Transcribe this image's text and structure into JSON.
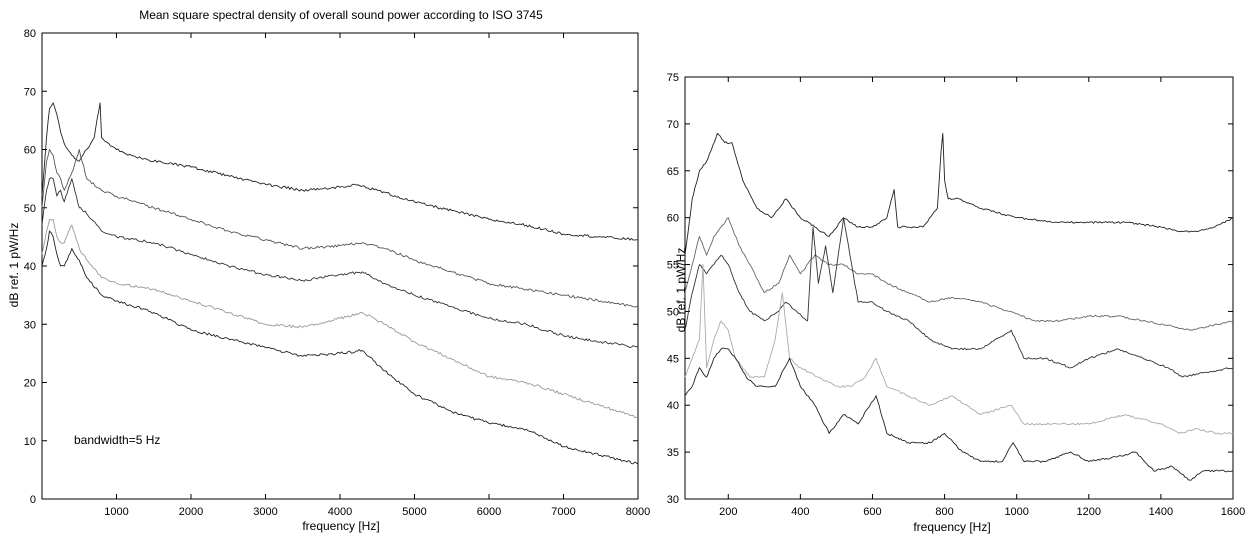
{
  "chart_data": [
    {
      "type": "line",
      "title": "Mean square spectral density of overall sound power according to ISO 3745",
      "xlabel": "frequency [Hz]",
      "ylabel": "dB ref. 1 pW/Hz",
      "annotation": "bandwidth=5 Hz",
      "xlim": [
        0,
        8000
      ],
      "ylim": [
        0,
        80
      ],
      "xticks": [
        1000,
        2000,
        3000,
        4000,
        5000,
        6000,
        7000,
        8000
      ],
      "yticks": [
        0,
        10,
        20,
        30,
        40,
        50,
        60,
        70,
        80
      ],
      "grid": false,
      "series": [
        {
          "color": "#222222",
          "x": [
            0,
            60,
            100,
            150,
            200,
            250,
            300,
            400,
            500,
            600,
            700,
            780,
            800,
            900,
            1000,
            1200,
            1500,
            2000,
            2500,
            3000,
            3500,
            4000,
            4200,
            4500,
            5000,
            5500,
            6000,
            6500,
            7000,
            7500,
            8000
          ],
          "y": [
            52,
            62,
            67,
            68,
            66,
            63,
            61,
            59,
            58,
            60,
            62,
            68,
            62,
            61,
            60,
            59,
            58,
            57,
            55.5,
            54,
            53,
            53.5,
            54,
            53,
            51,
            49.5,
            48,
            47,
            45.5,
            45,
            44.5
          ]
        },
        {
          "color": "#555555",
          "x": [
            0,
            60,
            100,
            150,
            200,
            250,
            300,
            400,
            500,
            600,
            800,
            1000,
            1500,
            2000,
            2500,
            3000,
            3500,
            4000,
            4300,
            4600,
            5000,
            5500,
            6000,
            6500,
            7000,
            7500,
            8000
          ],
          "y": [
            50,
            58,
            60,
            59,
            56,
            55,
            53,
            56,
            60,
            55,
            53,
            52,
            50,
            48,
            46,
            44.5,
            43,
            43.5,
            44,
            43,
            41,
            39,
            37,
            36,
            35,
            34,
            33
          ]
        },
        {
          "color": "#333333",
          "x": [
            0,
            60,
            100,
            150,
            200,
            250,
            300,
            400,
            500,
            600,
            800,
            1000,
            1500,
            2000,
            2500,
            3000,
            3500,
            4000,
            4300,
            4600,
            5000,
            5500,
            6000,
            6500,
            7000,
            7500,
            8000
          ],
          "y": [
            47,
            53,
            55,
            55,
            52,
            53,
            51,
            55,
            50,
            49,
            46,
            45,
            44,
            42,
            40,
            38.5,
            37.5,
            38.5,
            39,
            37,
            35,
            33,
            31,
            30,
            28,
            27,
            26
          ]
        },
        {
          "color": "#999999",
          "x": [
            0,
            60,
            100,
            150,
            200,
            250,
            300,
            400,
            500,
            600,
            800,
            1000,
            1500,
            2000,
            2500,
            3000,
            3500,
            4000,
            4300,
            4600,
            5000,
            5500,
            6000,
            6500,
            7000,
            7500,
            8000
          ],
          "y": [
            42,
            46,
            48,
            48,
            45,
            44,
            44,
            47,
            43,
            41,
            38,
            37,
            36,
            34,
            32,
            30,
            29.5,
            31,
            32,
            30,
            27,
            24,
            21,
            20,
            18,
            16,
            14
          ]
        },
        {
          "color": "#222222",
          "x": [
            0,
            60,
            100,
            150,
            200,
            250,
            300,
            400,
            500,
            600,
            800,
            1000,
            1500,
            2000,
            2500,
            3000,
            3500,
            4000,
            4300,
            4600,
            5000,
            5500,
            6000,
            6500,
            7000,
            7500,
            8000
          ],
          "y": [
            40,
            43,
            46,
            45,
            42,
            40,
            40,
            43,
            41,
            38,
            35,
            34,
            32,
            29,
            27.5,
            26,
            24.5,
            25,
            25.5,
            22,
            18,
            15,
            13,
            12,
            9,
            7.5,
            6
          ]
        }
      ]
    },
    {
      "type": "line",
      "title": "",
      "xlabel": "frequency [Hz]",
      "ylabel": "dB ref. 1 pW/Hz",
      "xlim": [
        80,
        1600
      ],
      "ylim": [
        30,
        75
      ],
      "xticks": [
        200,
        400,
        600,
        800,
        1000,
        1200,
        1400,
        1600
      ],
      "yticks": [
        30,
        35,
        40,
        45,
        50,
        55,
        60,
        65,
        70,
        75
      ],
      "grid": false,
      "series": [
        {
          "color": "#222222",
          "x": [
            80,
            100,
            120,
            140,
            170,
            190,
            210,
            240,
            280,
            320,
            360,
            400,
            440,
            480,
            520,
            560,
            600,
            640,
            660,
            665,
            670,
            700,
            740,
            780,
            790,
            795,
            800,
            810,
            840,
            900,
            1000,
            1100,
            1200,
            1300,
            1400,
            1450,
            1500,
            1550,
            1600
          ],
          "y": [
            56,
            62,
            65,
            66,
            69,
            68,
            68,
            64,
            61,
            60,
            62,
            60,
            59,
            58,
            60,
            59,
            59,
            60,
            63,
            61,
            59,
            59,
            59,
            61,
            67,
            69,
            64,
            62,
            62,
            61,
            60,
            59.5,
            59.5,
            59.5,
            59,
            58.5,
            58.5,
            59,
            60
          ]
        },
        {
          "color": "#666666",
          "x": [
            80,
            100,
            120,
            140,
            160,
            180,
            200,
            230,
            260,
            300,
            340,
            370,
            400,
            440,
            480,
            520,
            560,
            600,
            640,
            700,
            760,
            820,
            900,
            980,
            1050,
            1120,
            1200,
            1280,
            1350,
            1420,
            1480,
            1540,
            1600
          ],
          "y": [
            52,
            55,
            58,
            56,
            58,
            59,
            60,
            57,
            55,
            52,
            53,
            56,
            54,
            56,
            55,
            55,
            54,
            54,
            53,
            52,
            51,
            51.5,
            51,
            50,
            49,
            49,
            49.5,
            49.5,
            49,
            48.5,
            48,
            48.5,
            49
          ]
        },
        {
          "color": "#333333",
          "x": [
            80,
            100,
            120,
            140,
            160,
            180,
            200,
            230,
            260,
            300,
            340,
            360,
            390,
            420,
            435,
            450,
            470,
            490,
            520,
            560,
            600,
            640,
            700,
            760,
            820,
            900,
            985,
            1020,
            1080,
            1150,
            1200,
            1280,
            1350,
            1420,
            1460,
            1520,
            1600
          ],
          "y": [
            48,
            52,
            55,
            54,
            55,
            56,
            55,
            52,
            50,
            49,
            50,
            51,
            50,
            49,
            59,
            53,
            57,
            52,
            60,
            51,
            51,
            50,
            49,
            47,
            46,
            46,
            48,
            45,
            45,
            44,
            45,
            46,
            45,
            44,
            43,
            43.5,
            44
          ]
        },
        {
          "color": "#aaaaaa",
          "x": [
            80,
            100,
            120,
            130,
            140,
            160,
            180,
            200,
            220,
            260,
            300,
            330,
            350,
            370,
            400,
            450,
            500,
            540,
            580,
            610,
            640,
            700,
            760,
            820,
            900,
            985,
            1020,
            1100,
            1200,
            1300,
            1400,
            1450,
            1500,
            1550,
            1600
          ],
          "y": [
            43,
            45,
            47,
            55,
            44,
            47,
            49,
            48,
            45,
            43,
            43,
            47,
            52,
            45,
            44,
            43,
            42,
            42,
            43,
            45,
            42,
            41,
            40,
            41,
            39,
            40,
            38,
            38,
            38,
            39,
            38,
            37,
            37.5,
            37,
            37
          ]
        },
        {
          "color": "#222222",
          "x": [
            80,
            100,
            120,
            140,
            160,
            180,
            200,
            220,
            250,
            280,
            300,
            330,
            370,
            400,
            440,
            480,
            520,
            560,
            610,
            640,
            700,
            760,
            800,
            850,
            900,
            960,
            990,
            1020,
            1080,
            1150,
            1200,
            1280,
            1330,
            1380,
            1430,
            1480,
            1520,
            1560,
            1600
          ],
          "y": [
            41,
            42,
            44,
            43,
            45,
            46,
            46,
            45,
            43,
            42,
            42,
            42,
            45,
            42,
            40,
            37,
            39,
            38,
            41,
            37,
            36,
            36,
            37,
            35,
            34,
            34,
            36,
            34,
            34,
            35,
            34,
            34.5,
            35,
            33,
            33.5,
            32,
            33,
            33,
            33
          ]
        }
      ]
    }
  ]
}
